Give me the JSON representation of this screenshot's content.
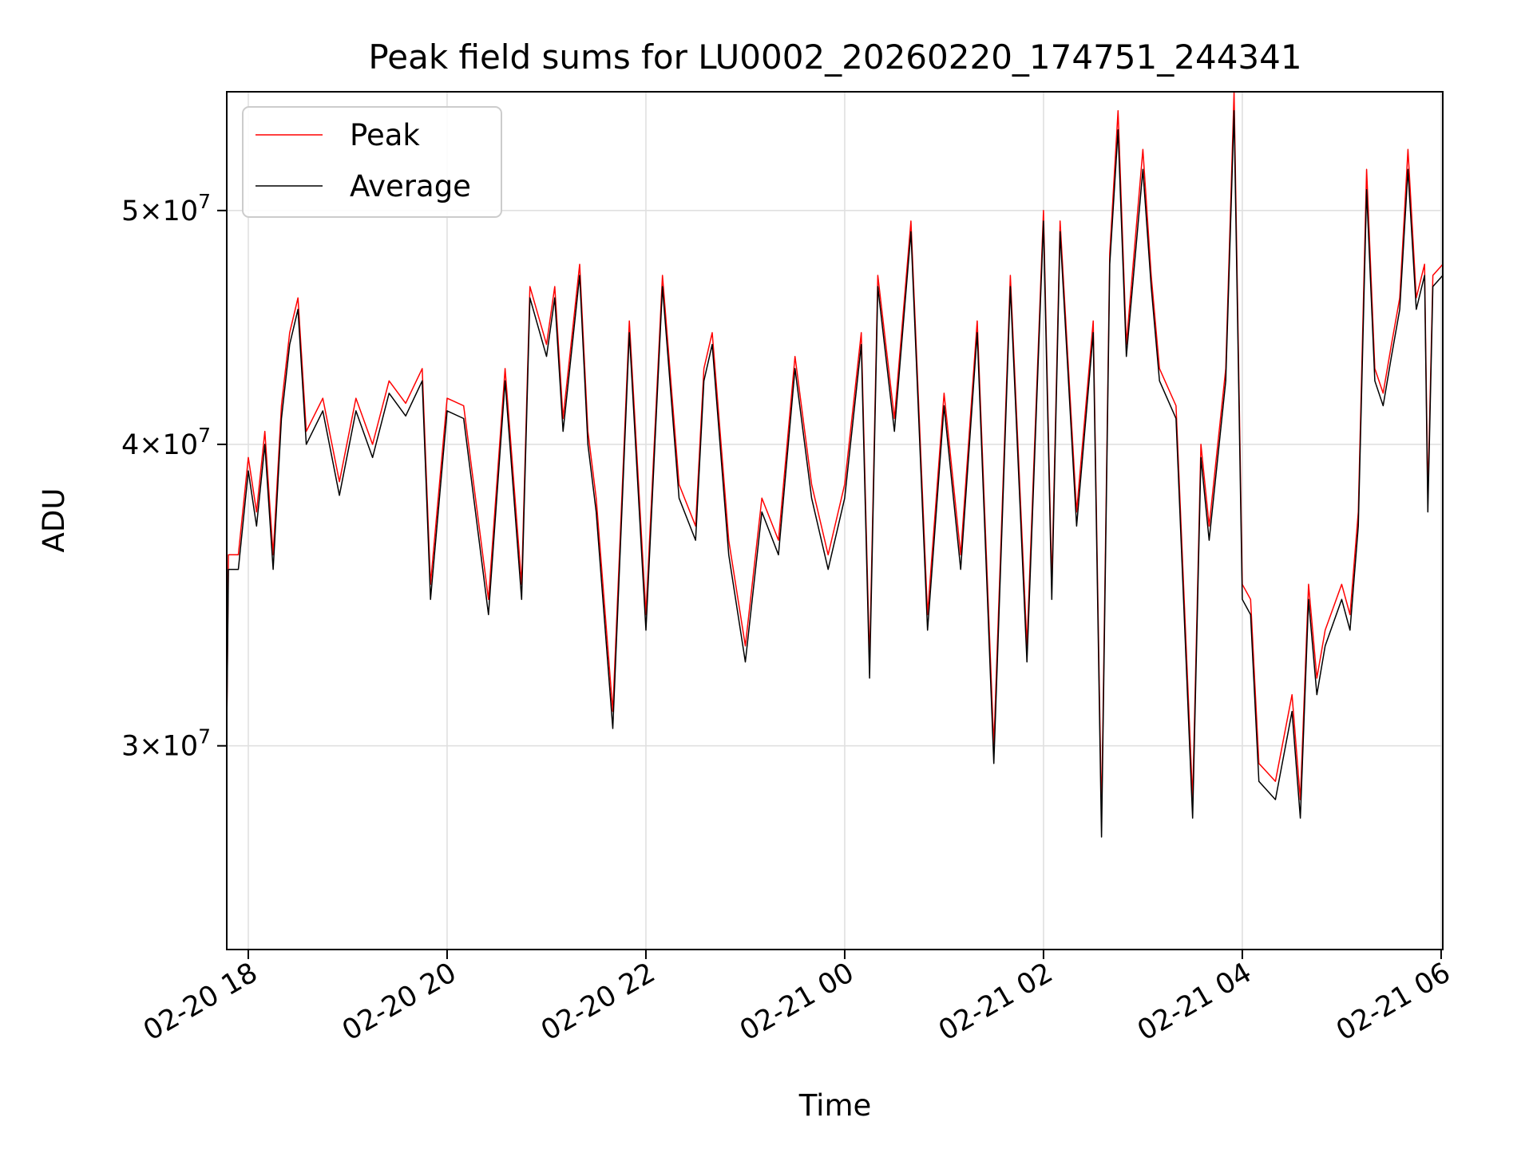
{
  "chart_data": {
    "type": "line",
    "title": "Peak field sums for LU0002_20260220_174751_244341",
    "xlabel": "Time",
    "ylabel": "ADU",
    "y_scale": "log",
    "ylim": [
      24700000,
      56000000
    ],
    "xlim": [
      "2026-02-20 17:47",
      "2026-02-21 06:01"
    ],
    "grid": true,
    "legend": "upper left",
    "x_ticks": [
      {
        "t": "2026-02-20 18:00",
        "label": "02-20 18"
      },
      {
        "t": "2026-02-20 20:00",
        "label": "02-20 20"
      },
      {
        "t": "2026-02-20 22:00",
        "label": "02-20 22"
      },
      {
        "t": "2026-02-21 00:00",
        "label": "02-21 00"
      },
      {
        "t": "2026-02-21 02:00",
        "label": "02-21 02"
      },
      {
        "t": "2026-02-21 04:00",
        "label": "02-21 04"
      },
      {
        "t": "2026-02-21 06:00",
        "label": "02-21 06"
      }
    ],
    "y_ticks": [
      {
        "value": 30000000,
        "mant": "3",
        "exp": "7"
      },
      {
        "value": 40000000,
        "mant": "4",
        "exp": "7"
      },
      {
        "value": 50000000,
        "mant": "5",
        "exp": "7"
      }
    ],
    "series": [
      {
        "name": "Peak",
        "color": "#ff0000",
        "points": [
          [
            "2026-02-20 17:47",
            30500000
          ],
          [
            "2026-02-20 17:48",
            36000000
          ],
          [
            "2026-02-20 17:54",
            36000000
          ],
          [
            "2026-02-20 18:00",
            39500000
          ],
          [
            "2026-02-20 18:05",
            37500000
          ],
          [
            "2026-02-20 18:10",
            40500000
          ],
          [
            "2026-02-20 18:15",
            36000000
          ],
          [
            "2026-02-20 18:20",
            41500000
          ],
          [
            "2026-02-20 18:25",
            44500000
          ],
          [
            "2026-02-20 18:30",
            46000000
          ],
          [
            "2026-02-20 18:35",
            40500000
          ],
          [
            "2026-02-20 18:45",
            41800000
          ],
          [
            "2026-02-20 18:55",
            38600000
          ],
          [
            "2026-02-20 19:05",
            41800000
          ],
          [
            "2026-02-20 19:15",
            40000000
          ],
          [
            "2026-02-20 19:25",
            42500000
          ],
          [
            "2026-02-20 19:35",
            41600000
          ],
          [
            "2026-02-20 19:45",
            43000000
          ],
          [
            "2026-02-20 19:50",
            35000000
          ],
          [
            "2026-02-20 20:00",
            41800000
          ],
          [
            "2026-02-20 20:10",
            41500000
          ],
          [
            "2026-02-20 20:25",
            34500000
          ],
          [
            "2026-02-20 20:35",
            43000000
          ],
          [
            "2026-02-20 20:45",
            35000000
          ],
          [
            "2026-02-20 20:50",
            46500000
          ],
          [
            "2026-02-20 21:00",
            44000000
          ],
          [
            "2026-02-20 21:05",
            46500000
          ],
          [
            "2026-02-20 21:10",
            41000000
          ],
          [
            "2026-02-20 21:20",
            47500000
          ],
          [
            "2026-02-20 21:25",
            40500000
          ],
          [
            "2026-02-20 21:30",
            38000000
          ],
          [
            "2026-02-20 21:40",
            31000000
          ],
          [
            "2026-02-20 21:50",
            45000000
          ],
          [
            "2026-02-20 22:00",
            34000000
          ],
          [
            "2026-02-20 22:10",
            47000000
          ],
          [
            "2026-02-20 22:20",
            38500000
          ],
          [
            "2026-02-20 22:30",
            37000000
          ],
          [
            "2026-02-20 22:35",
            43000000
          ],
          [
            "2026-02-20 22:40",
            44500000
          ],
          [
            "2026-02-20 22:50",
            36500000
          ],
          [
            "2026-02-20 23:00",
            33000000
          ],
          [
            "2026-02-20 23:10",
            38000000
          ],
          [
            "2026-02-20 23:20",
            36500000
          ],
          [
            "2026-02-20 23:30",
            43500000
          ],
          [
            "2026-02-20 23:40",
            38500000
          ],
          [
            "2026-02-20 23:50",
            36000000
          ],
          [
            "2026-02-21 00:00",
            38500000
          ],
          [
            "2026-02-21 00:10",
            44500000
          ],
          [
            "2026-02-21 00:15",
            32500000
          ],
          [
            "2026-02-21 00:20",
            47000000
          ],
          [
            "2026-02-21 00:30",
            41000000
          ],
          [
            "2026-02-21 00:40",
            49500000
          ],
          [
            "2026-02-21 00:50",
            34000000
          ],
          [
            "2026-02-21 01:00",
            42000000
          ],
          [
            "2026-02-21 01:10",
            36000000
          ],
          [
            "2026-02-21 01:20",
            45000000
          ],
          [
            "2026-02-21 01:30",
            30000000
          ],
          [
            "2026-02-21 01:40",
            47000000
          ],
          [
            "2026-02-21 01:50",
            33000000
          ],
          [
            "2026-02-21 02:00",
            50000000
          ],
          [
            "2026-02-21 02:05",
            35000000
          ],
          [
            "2026-02-21 02:10",
            49500000
          ],
          [
            "2026-02-21 02:20",
            37500000
          ],
          [
            "2026-02-21 02:30",
            45000000
          ],
          [
            "2026-02-21 02:35",
            28000000
          ],
          [
            "2026-02-21 02:40",
            48000000
          ],
          [
            "2026-02-21 02:45",
            55000000
          ],
          [
            "2026-02-21 02:50",
            44000000
          ],
          [
            "2026-02-21 03:00",
            53000000
          ],
          [
            "2026-02-21 03:05",
            47000000
          ],
          [
            "2026-02-21 03:10",
            43000000
          ],
          [
            "2026-02-21 03:20",
            41500000
          ],
          [
            "2026-02-21 03:30",
            28500000
          ],
          [
            "2026-02-21 03:35",
            40000000
          ],
          [
            "2026-02-21 03:40",
            37000000
          ],
          [
            "2026-02-21 03:50",
            43000000
          ],
          [
            "2026-02-21 03:55",
            56000000
          ],
          [
            "2026-02-21 04:00",
            35000000
          ],
          [
            "2026-02-21 04:05",
            34500000
          ],
          [
            "2026-02-21 04:10",
            29500000
          ],
          [
            "2026-02-21 04:20",
            29000000
          ],
          [
            "2026-02-21 04:30",
            31500000
          ],
          [
            "2026-02-21 04:35",
            28500000
          ],
          [
            "2026-02-21 04:40",
            35000000
          ],
          [
            "2026-02-21 04:45",
            32000000
          ],
          [
            "2026-02-21 04:50",
            33500000
          ],
          [
            "2026-02-21 05:00",
            35000000
          ],
          [
            "2026-02-21 05:05",
            34000000
          ],
          [
            "2026-02-21 05:10",
            37500000
          ],
          [
            "2026-02-21 05:15",
            52000000
          ],
          [
            "2026-02-21 05:20",
            43000000
          ],
          [
            "2026-02-21 05:25",
            42000000
          ],
          [
            "2026-02-21 05:30",
            44000000
          ],
          [
            "2026-02-21 05:35",
            46000000
          ],
          [
            "2026-02-21 05:40",
            53000000
          ],
          [
            "2026-02-21 05:45",
            46000000
          ],
          [
            "2026-02-21 05:50",
            47500000
          ],
          [
            "2026-02-21 05:52",
            38000000
          ],
          [
            "2026-02-21 05:55",
            47000000
          ],
          [
            "2026-02-21 06:01",
            47500000
          ]
        ]
      },
      {
        "name": "Average",
        "color": "#000000",
        "points": [
          [
            "2026-02-20 17:47",
            30500000
          ],
          [
            "2026-02-20 17:48",
            35500000
          ],
          [
            "2026-02-20 17:54",
            35500000
          ],
          [
            "2026-02-20 18:00",
            39000000
          ],
          [
            "2026-02-20 18:05",
            37000000
          ],
          [
            "2026-02-20 18:10",
            40000000
          ],
          [
            "2026-02-20 18:15",
            35500000
          ],
          [
            "2026-02-20 18:20",
            41000000
          ],
          [
            "2026-02-20 18:25",
            44000000
          ],
          [
            "2026-02-20 18:30",
            45500000
          ],
          [
            "2026-02-20 18:35",
            40000000
          ],
          [
            "2026-02-20 18:45",
            41300000
          ],
          [
            "2026-02-20 18:55",
            38100000
          ],
          [
            "2026-02-20 19:05",
            41300000
          ],
          [
            "2026-02-20 19:15",
            39500000
          ],
          [
            "2026-02-20 19:25",
            42000000
          ],
          [
            "2026-02-20 19:35",
            41100000
          ],
          [
            "2026-02-20 19:45",
            42500000
          ],
          [
            "2026-02-20 19:50",
            34500000
          ],
          [
            "2026-02-20 20:00",
            41300000
          ],
          [
            "2026-02-20 20:10",
            41000000
          ],
          [
            "2026-02-20 20:25",
            34000000
          ],
          [
            "2026-02-20 20:35",
            42500000
          ],
          [
            "2026-02-20 20:45",
            34500000
          ],
          [
            "2026-02-20 20:50",
            46000000
          ],
          [
            "2026-02-20 21:00",
            43500000
          ],
          [
            "2026-02-20 21:05",
            46000000
          ],
          [
            "2026-02-20 21:10",
            40500000
          ],
          [
            "2026-02-20 21:20",
            47000000
          ],
          [
            "2026-02-20 21:25",
            40000000
          ],
          [
            "2026-02-20 21:30",
            37500000
          ],
          [
            "2026-02-20 21:40",
            30500000
          ],
          [
            "2026-02-20 21:50",
            44500000
          ],
          [
            "2026-02-20 22:00",
            33500000
          ],
          [
            "2026-02-20 22:10",
            46500000
          ],
          [
            "2026-02-20 22:20",
            38000000
          ],
          [
            "2026-02-20 22:30",
            36500000
          ],
          [
            "2026-02-20 22:35",
            42500000
          ],
          [
            "2026-02-20 22:40",
            44000000
          ],
          [
            "2026-02-20 22:50",
            36000000
          ],
          [
            "2026-02-20 23:00",
            32500000
          ],
          [
            "2026-02-20 23:10",
            37500000
          ],
          [
            "2026-02-20 23:20",
            36000000
          ],
          [
            "2026-02-20 23:30",
            43000000
          ],
          [
            "2026-02-20 23:40",
            38000000
          ],
          [
            "2026-02-20 23:50",
            35500000
          ],
          [
            "2026-02-21 00:00",
            38000000
          ],
          [
            "2026-02-21 00:10",
            44000000
          ],
          [
            "2026-02-21 00:15",
            32000000
          ],
          [
            "2026-02-21 00:20",
            46500000
          ],
          [
            "2026-02-21 00:30",
            40500000
          ],
          [
            "2026-02-21 00:40",
            49000000
          ],
          [
            "2026-02-21 00:50",
            33500000
          ],
          [
            "2026-02-21 01:00",
            41500000
          ],
          [
            "2026-02-21 01:10",
            35500000
          ],
          [
            "2026-02-21 01:20",
            44500000
          ],
          [
            "2026-02-21 01:30",
            29500000
          ],
          [
            "2026-02-21 01:40",
            46500000
          ],
          [
            "2026-02-21 01:50",
            32500000
          ],
          [
            "2026-02-21 02:00",
            49500000
          ],
          [
            "2026-02-21 02:05",
            34500000
          ],
          [
            "2026-02-21 02:10",
            49000000
          ],
          [
            "2026-02-21 02:20",
            37000000
          ],
          [
            "2026-02-21 02:30",
            44500000
          ],
          [
            "2026-02-21 02:35",
            27500000
          ],
          [
            "2026-02-21 02:40",
            47500000
          ],
          [
            "2026-02-21 02:45",
            54000000
          ],
          [
            "2026-02-21 02:50",
            43500000
          ],
          [
            "2026-02-21 03:00",
            52000000
          ],
          [
            "2026-02-21 03:05",
            46500000
          ],
          [
            "2026-02-21 03:10",
            42500000
          ],
          [
            "2026-02-21 03:20",
            41000000
          ],
          [
            "2026-02-21 03:30",
            28000000
          ],
          [
            "2026-02-21 03:35",
            39500000
          ],
          [
            "2026-02-21 03:40",
            36500000
          ],
          [
            "2026-02-21 03:50",
            42500000
          ],
          [
            "2026-02-21 03:55",
            55000000
          ],
          [
            "2026-02-21 04:00",
            34500000
          ],
          [
            "2026-02-21 04:05",
            34000000
          ],
          [
            "2026-02-21 04:10",
            29000000
          ],
          [
            "2026-02-21 04:20",
            28500000
          ],
          [
            "2026-02-21 04:30",
            31000000
          ],
          [
            "2026-02-21 04:35",
            28000000
          ],
          [
            "2026-02-21 04:40",
            34500000
          ],
          [
            "2026-02-21 04:45",
            31500000
          ],
          [
            "2026-02-21 04:50",
            33000000
          ],
          [
            "2026-02-21 05:00",
            34500000
          ],
          [
            "2026-02-21 05:05",
            33500000
          ],
          [
            "2026-02-21 05:10",
            37000000
          ],
          [
            "2026-02-21 05:15",
            51000000
          ],
          [
            "2026-02-21 05:20",
            42500000
          ],
          [
            "2026-02-21 05:25",
            41500000
          ],
          [
            "2026-02-21 05:30",
            43500000
          ],
          [
            "2026-02-21 05:35",
            45500000
          ],
          [
            "2026-02-21 05:40",
            52000000
          ],
          [
            "2026-02-21 05:45",
            45500000
          ],
          [
            "2026-02-21 05:50",
            47000000
          ],
          [
            "2026-02-21 05:52",
            37500000
          ],
          [
            "2026-02-21 05:55",
            46500000
          ],
          [
            "2026-02-21 06:01",
            47000000
          ]
        ]
      }
    ]
  }
}
